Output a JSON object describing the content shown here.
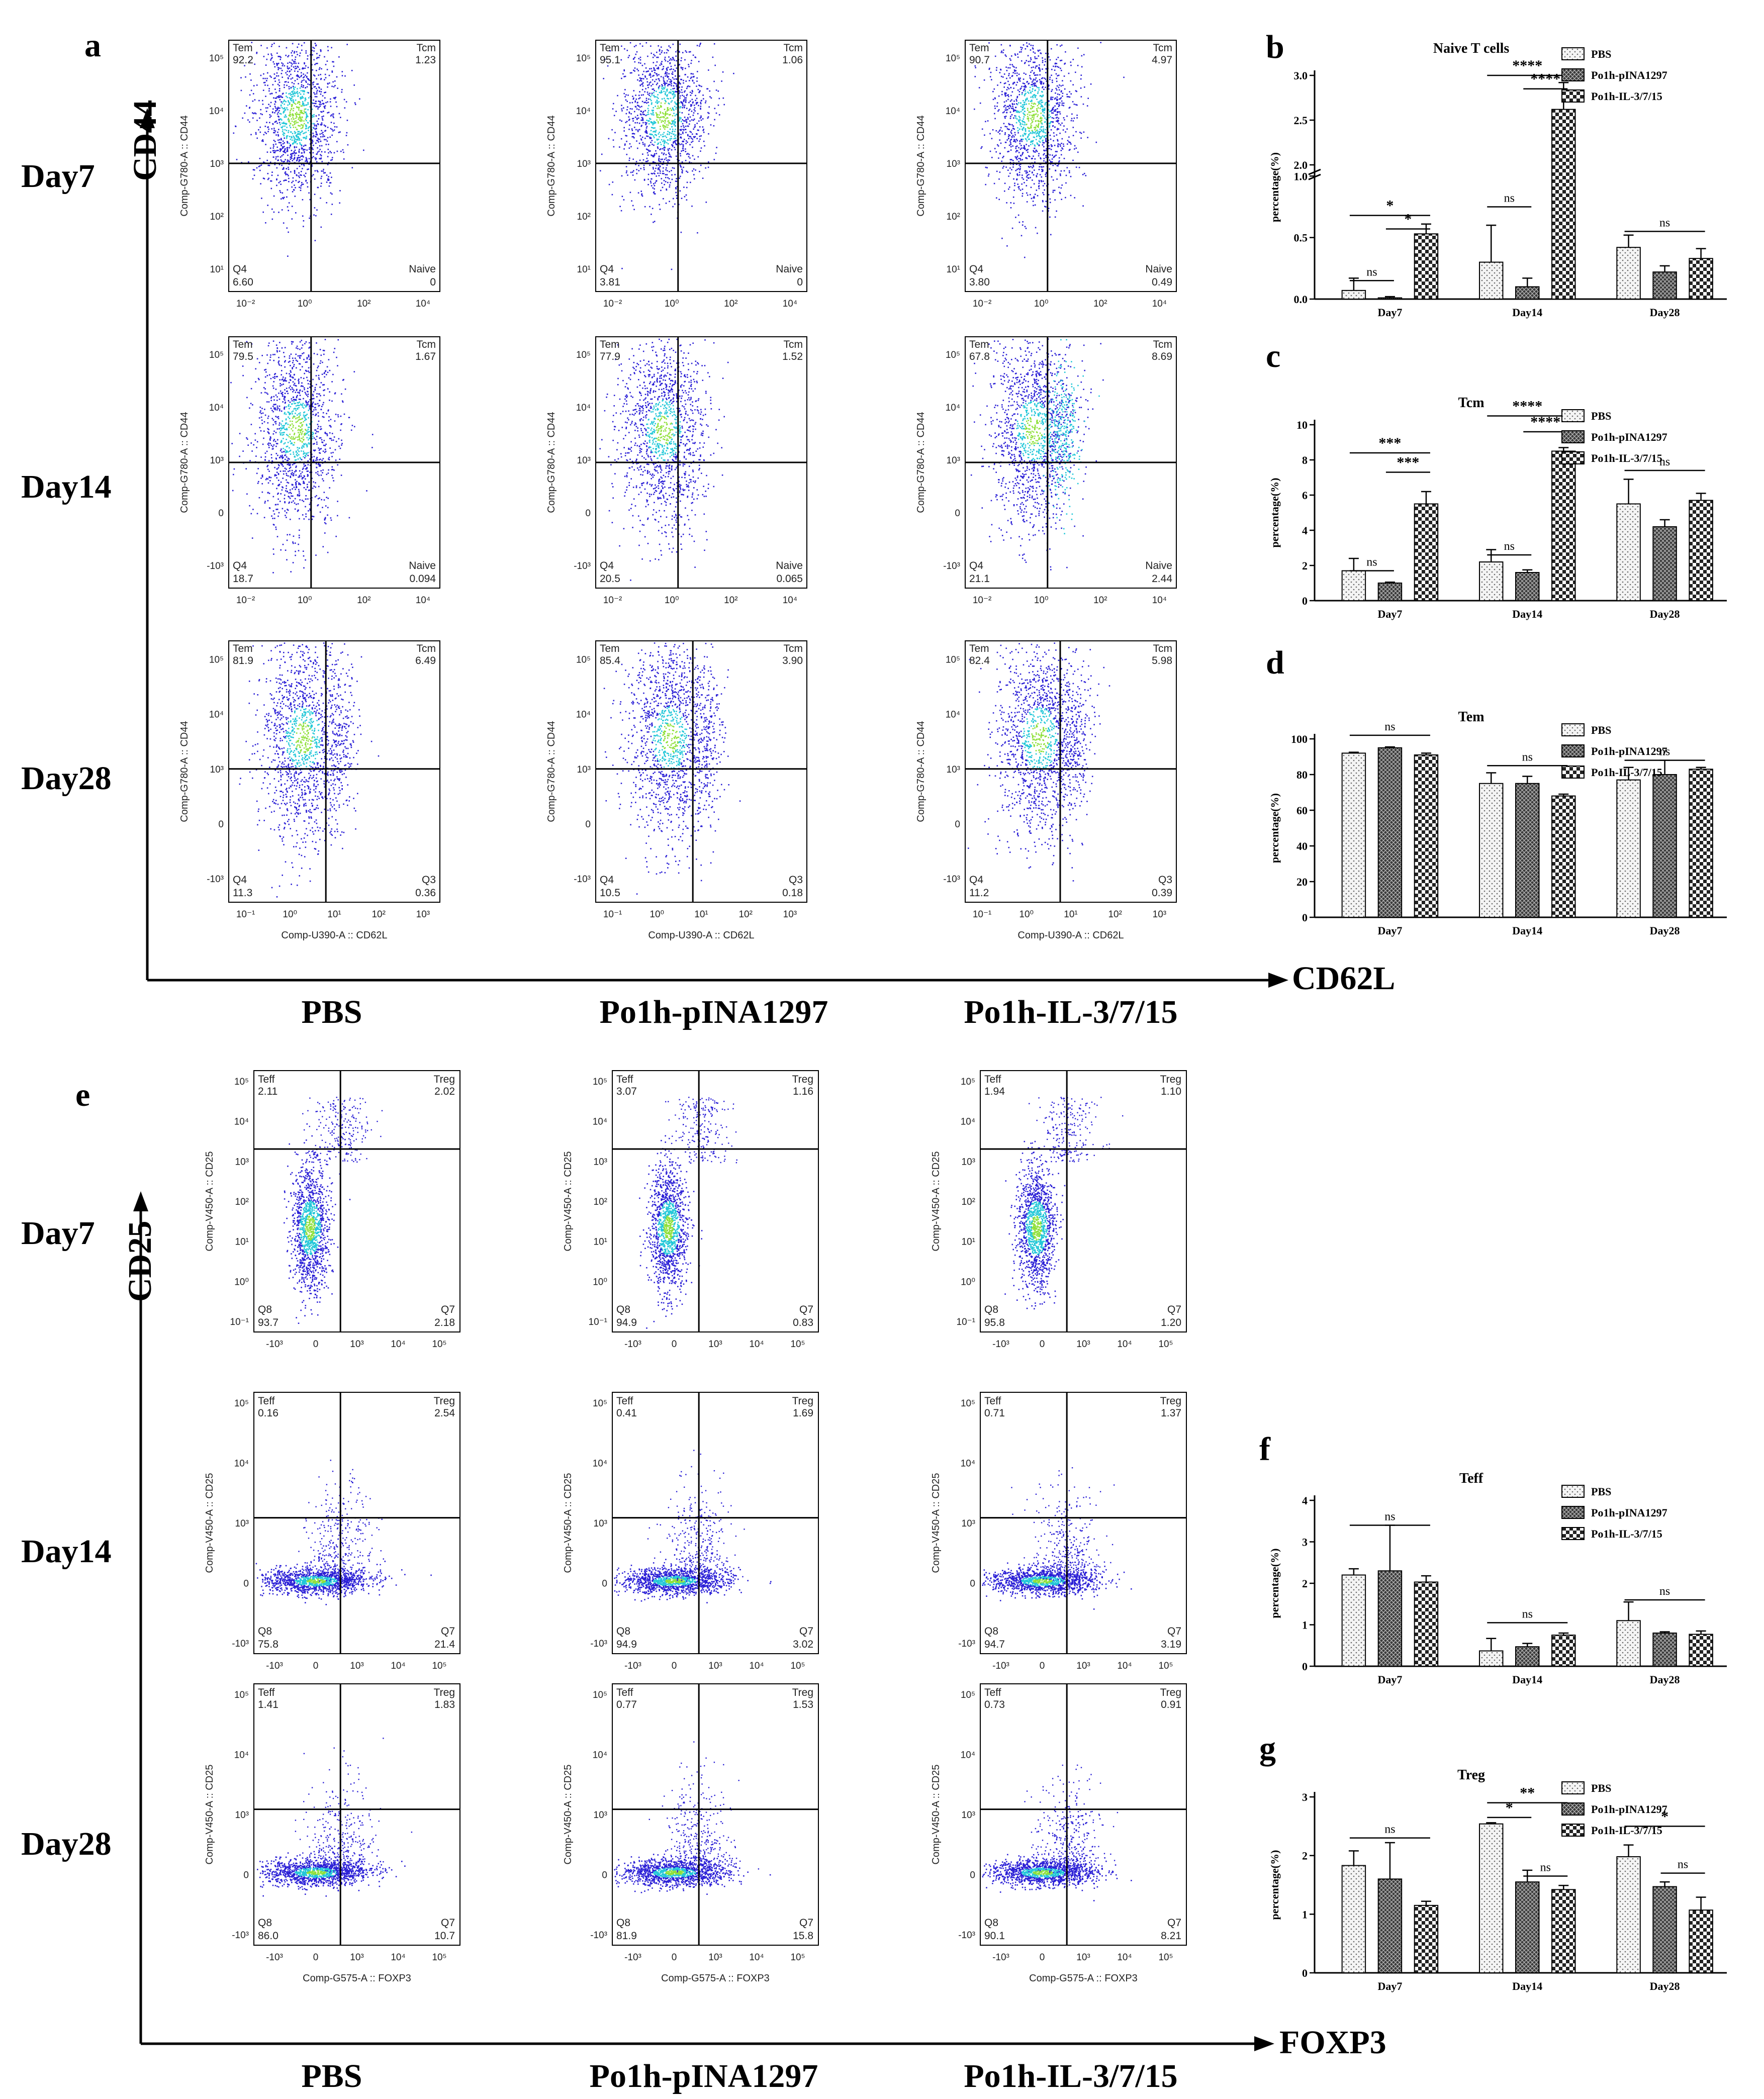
{
  "panel_letters": {
    "a": "a",
    "b": "b",
    "c": "c",
    "d": "d",
    "e": "e",
    "f": "f",
    "g": "g"
  },
  "groups": [
    "PBS",
    "Po1h-pINA1297",
    "Po1h-IL-3/7/15"
  ],
  "days": [
    "Day7",
    "Day14",
    "Day28"
  ],
  "axis_titles": {
    "cd44": "CD44",
    "cd62l": "CD62L",
    "cd25": "CD25",
    "foxp3": "FOXP3"
  },
  "colors": {
    "flow_low": "#2a1fd6",
    "flow_mid": "#22c7d8",
    "flow_high": "#8fe03a"
  },
  "flow_top": {
    "x_label": "Comp-U390-A :: CD62L",
    "y_label": "Comp-G780-A :: CD44",
    "plots": [
      [
        {
          "tl_name": "Tem",
          "tl_val": "92.2",
          "tr_name": "Tcm",
          "tr_val": "1.23",
          "bl_name": "Q4",
          "bl_val": "6.60",
          "br_name": "Naive",
          "br_val": "0"
        },
        {
          "tl_name": "Tem",
          "tl_val": "95.1",
          "tr_name": "Tcm",
          "tr_val": "1.06",
          "bl_name": "Q4",
          "bl_val": "3.81",
          "br_name": "Naive",
          "br_val": "0"
        },
        {
          "tl_name": "Tem",
          "tl_val": "90.7",
          "tr_name": "Tcm",
          "tr_val": "4.97",
          "bl_name": "Q4",
          "bl_val": "3.80",
          "br_name": "Naive",
          "br_val": "0.49"
        }
      ],
      [
        {
          "tl_name": "Tem",
          "tl_val": "79.5",
          "tr_name": "Tcm",
          "tr_val": "1.67",
          "bl_name": "Q4",
          "bl_val": "18.7",
          "br_name": "Naive",
          "br_val": "0.094"
        },
        {
          "tl_name": "Tem",
          "tl_val": "77.9",
          "tr_name": "Tcm",
          "tr_val": "1.52",
          "bl_name": "Q4",
          "bl_val": "20.5",
          "br_name": "Naive",
          "br_val": "0.065"
        },
        {
          "tl_name": "Tem",
          "tl_val": "67.8",
          "tr_name": "Tcm",
          "tr_val": "8.69",
          "bl_name": "Q4",
          "bl_val": "21.1",
          "br_name": "Naive",
          "br_val": "2.44"
        }
      ],
      [
        {
          "tl_name": "Tem",
          "tl_val": "81.9",
          "tr_name": "Tcm",
          "tr_val": "6.49",
          "bl_name": "Q4",
          "bl_val": "11.3",
          "br_name": "Q3",
          "br_val": "0.36"
        },
        {
          "tl_name": "Tem",
          "tl_val": "85.4",
          "tr_name": "Tcm",
          "tr_val": "3.90",
          "bl_name": "Q4",
          "bl_val": "10.5",
          "br_name": "Q3",
          "br_val": "0.18"
        },
        {
          "tl_name": "Tem",
          "tl_val": "82.4",
          "tr_name": "Tcm",
          "tr_val": "5.98",
          "bl_name": "Q4",
          "bl_val": "11.2",
          "br_name": "Q3",
          "br_val": "0.39"
        }
      ]
    ]
  },
  "flow_bottom": {
    "x_label": "Comp-G575-A :: FOXP3",
    "y_label": "Comp-V450-A :: CD25",
    "plots": [
      [
        {
          "tl_name": "Teff",
          "tl_val": "2.11",
          "tr_name": "Treg",
          "tr_val": "2.02",
          "bl_name": "Q8",
          "bl_val": "93.7",
          "br_name": "Q7",
          "br_val": "2.18"
        },
        {
          "tl_name": "Teff",
          "tl_val": "3.07",
          "tr_name": "Treg",
          "tr_val": "1.16",
          "bl_name": "Q8",
          "bl_val": "94.9",
          "br_name": "Q7",
          "br_val": "0.83"
        },
        {
          "tl_name": "Teff",
          "tl_val": "1.94",
          "tr_name": "Treg",
          "tr_val": "1.10",
          "bl_name": "Q8",
          "bl_val": "95.8",
          "br_name": "Q7",
          "br_val": "1.20"
        }
      ],
      [
        {
          "tl_name": "Teff",
          "tl_val": "0.16",
          "tr_name": "Treg",
          "tr_val": "2.54",
          "bl_name": "Q8",
          "bl_val": "75.8",
          "br_name": "Q7",
          "br_val": "21.4"
        },
        {
          "tl_name": "Teff",
          "tl_val": "0.41",
          "tr_name": "Treg",
          "tr_val": "1.69",
          "bl_name": "Q8",
          "bl_val": "94.9",
          "br_name": "Q7",
          "br_val": "3.02"
        },
        {
          "tl_name": "Teff",
          "tl_val": "0.71",
          "tr_name": "Treg",
          "tr_val": "1.37",
          "bl_name": "Q8",
          "bl_val": "94.7",
          "br_name": "Q7",
          "br_val": "3.19"
        }
      ],
      [
        {
          "tl_name": "Teff",
          "tl_val": "1.41",
          "tr_name": "Treg",
          "tr_val": "1.83",
          "bl_name": "Q8",
          "bl_val": "86.0",
          "br_name": "Q7",
          "br_val": "10.7"
        },
        {
          "tl_name": "Teff",
          "tl_val": "0.77",
          "tr_name": "Treg",
          "tr_val": "1.53",
          "bl_name": "Q8",
          "bl_val": "81.9",
          "br_name": "Q7",
          "br_val": "15.8"
        },
        {
          "tl_name": "Teff",
          "tl_val": "0.73",
          "tr_name": "Treg",
          "tr_val": "0.91",
          "bl_name": "Q8",
          "bl_val": "90.1",
          "br_name": "Q7",
          "br_val": "8.21"
        }
      ]
    ]
  },
  "chart_data": [
    {
      "id": "b",
      "type": "bar",
      "title": "Naive T cells",
      "ylabel": "percentage(%)",
      "categories": [
        "Day7",
        "Day14",
        "Day28"
      ],
      "ylim": [
        0,
        3.0
      ],
      "axis_break": [
        1.0,
        2.0
      ],
      "yticks": [
        "0.0",
        "0.5",
        "1.0",
        "2.0",
        "2.5",
        "3.0"
      ],
      "series": [
        {
          "name": "PBS",
          "values": [
            0.07,
            0.3,
            0.42
          ],
          "errors": [
            0.1,
            0.3,
            0.1
          ]
        },
        {
          "name": "Po1h-pINA1297",
          "values": [
            0.01,
            0.1,
            0.22
          ],
          "errors": [
            0.01,
            0.07,
            0.05
          ]
        },
        {
          "name": "Po1h-IL-3/7/15",
          "values": [
            0.53,
            2.62,
            0.33
          ],
          "errors": [
            0.08,
            0.3,
            0.08
          ]
        }
      ],
      "annotations": [
        "ns",
        "*",
        "*",
        "ns",
        "****",
        "****",
        "ns"
      ]
    },
    {
      "id": "c",
      "type": "bar",
      "title": "Tcm",
      "ylabel": "percentage(%)",
      "categories": [
        "Day7",
        "Day14",
        "Day28"
      ],
      "ylim": [
        0,
        10
      ],
      "yticks": [
        "0",
        "2",
        "4",
        "6",
        "8",
        "10"
      ],
      "series": [
        {
          "name": "PBS",
          "values": [
            1.7,
            2.2,
            5.5
          ],
          "errors": [
            0.7,
            0.7,
            1.4
          ]
        },
        {
          "name": "Po1h-pINA1297",
          "values": [
            1.0,
            1.6,
            4.2
          ],
          "errors": [
            0.05,
            0.15,
            0.4
          ]
        },
        {
          "name": "Po1h-IL-3/7/15",
          "values": [
            5.5,
            8.5,
            5.7
          ],
          "errors": [
            0.7,
            0.2,
            0.4
          ]
        }
      ],
      "annotations": [
        "ns",
        "***",
        "***",
        "ns",
        "****",
        "****",
        "ns"
      ]
    },
    {
      "id": "d",
      "type": "bar",
      "title": "Tem",
      "ylabel": "percentage(%)",
      "categories": [
        "Day7",
        "Day14",
        "Day28"
      ],
      "ylim": [
        0,
        100
      ],
      "yticks": [
        "0",
        "20",
        "40",
        "60",
        "80",
        "100"
      ],
      "series": [
        {
          "name": "PBS",
          "values": [
            92,
            75,
            77
          ],
          "errors": [
            0.5,
            6,
            7
          ]
        },
        {
          "name": "Po1h-pINA1297",
          "values": [
            95,
            75,
            80
          ],
          "errors": [
            0.5,
            4,
            8
          ]
        },
        {
          "name": "Po1h-IL-3/7/15",
          "values": [
            91,
            68,
            83
          ],
          "errors": [
            1,
            1,
            1
          ]
        }
      ],
      "annotations": [
        "ns",
        "ns",
        "ns"
      ]
    },
    {
      "id": "f",
      "type": "bar",
      "title": "Teff",
      "ylabel": "percentage(%)",
      "categories": [
        "Day7",
        "Day14",
        "Day28"
      ],
      "ylim": [
        0,
        4
      ],
      "yticks": [
        "0",
        "1",
        "2",
        "3",
        "4"
      ],
      "series": [
        {
          "name": "PBS",
          "values": [
            2.2,
            0.37,
            1.1
          ],
          "errors": [
            0.15,
            0.3,
            0.45
          ]
        },
        {
          "name": "Po1h-pINA1297",
          "values": [
            2.3,
            0.47,
            0.8
          ],
          "errors": [
            1.1,
            0.08,
            0.03
          ]
        },
        {
          "name": "Po1h-IL-3/7/15",
          "values": [
            2.03,
            0.75,
            0.77
          ],
          "errors": [
            0.15,
            0.05,
            0.08
          ]
        }
      ],
      "annotations": [
        "ns",
        "ns",
        "ns"
      ]
    },
    {
      "id": "g",
      "type": "bar",
      "title": "Treg",
      "ylabel": "percentage(%)",
      "categories": [
        "Day7",
        "Day14",
        "Day28"
      ],
      "ylim": [
        0,
        3
      ],
      "yticks": [
        "0",
        "1",
        "2",
        "3"
      ],
      "series": [
        {
          "name": "PBS",
          "values": [
            1.83,
            2.54,
            1.98
          ],
          "errors": [
            0.25,
            0.02,
            0.2
          ]
        },
        {
          "name": "Po1h-pINA1297",
          "values": [
            1.6,
            1.55,
            1.47
          ],
          "errors": [
            0.62,
            0.2,
            0.08
          ]
        },
        {
          "name": "Po1h-IL-3/7/15",
          "values": [
            1.15,
            1.42,
            1.07
          ],
          "errors": [
            0.07,
            0.07,
            0.22
          ]
        }
      ],
      "annotations": [
        "ns",
        "*",
        "**",
        "ns",
        "*",
        "ns"
      ]
    }
  ]
}
